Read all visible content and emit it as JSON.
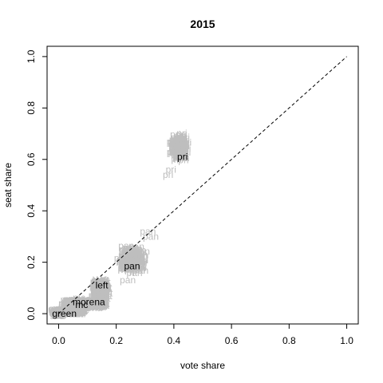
{
  "chart_data": {
    "type": "scatter",
    "title": "2015",
    "xlabel": "vote share",
    "ylabel": "seat share",
    "xlim": [
      -0.04,
      1.04
    ],
    "ylim": [
      -0.04,
      1.04
    ],
    "xticks": [
      "0.0",
      "0.2",
      "0.4",
      "0.6",
      "0.8",
      "1.0"
    ],
    "yticks": [
      "0.0",
      "0.2",
      "0.4",
      "0.6",
      "0.8",
      "1.0"
    ],
    "grid": false,
    "reference_line": {
      "from": [
        0,
        0
      ],
      "to": [
        1,
        1
      ],
      "style": "dashed"
    },
    "colors": {
      "simulated": "#bebebe",
      "observed": "#000000",
      "axes": "#000000"
    },
    "series": [
      {
        "name": "pri",
        "x": 0.41,
        "y": 0.62,
        "label_pos": [
          0.43,
          0.61
        ],
        "sim_center": [
          0.42,
          0.65
        ],
        "sim_spread": [
          0.022,
          0.045
        ],
        "sim_extra": [
          [
            0.39,
            0.56
          ],
          [
            0.38,
            0.54
          ]
        ]
      },
      {
        "name": "pan",
        "x": 0.22,
        "y": 0.18,
        "label_pos": [
          0.255,
          0.185
        ],
        "sim_center": [
          0.255,
          0.21
        ],
        "sim_spread": [
          0.03,
          0.045
        ],
        "sim_extra": [
          [
            0.31,
            0.32
          ],
          [
            0.32,
            0.3
          ],
          [
            0.24,
            0.13
          ]
        ]
      },
      {
        "name": "left",
        "x": 0.13,
        "y": 0.11,
        "label_pos": [
          0.15,
          0.11
        ],
        "sim_center": [
          0.145,
          0.09
        ],
        "sim_spread": [
          0.018,
          0.045
        ],
        "sim_extra": []
      },
      {
        "name": "morena",
        "x": 0.085,
        "y": 0.045,
        "label_pos": [
          0.105,
          0.045
        ],
        "sim_center": [
          0.09,
          0.04
        ],
        "sim_spread": [
          0.03,
          0.02
        ],
        "sim_extra": []
      },
      {
        "name": "mc",
        "x": 0.06,
        "y": 0.035,
        "label_pos": [
          0.08,
          0.035
        ],
        "sim_center": [
          0.07,
          0.035
        ],
        "sim_spread": [
          0.02,
          0.02
        ],
        "sim_extra": []
      },
      {
        "name": "green",
        "x": 0.02,
        "y": 0.0,
        "label_pos": [
          0.02,
          0.0
        ],
        "sim_center": [
          0.035,
          0.01
        ],
        "sim_spread": [
          0.025,
          0.012
        ],
        "sim_extra": []
      }
    ]
  }
}
